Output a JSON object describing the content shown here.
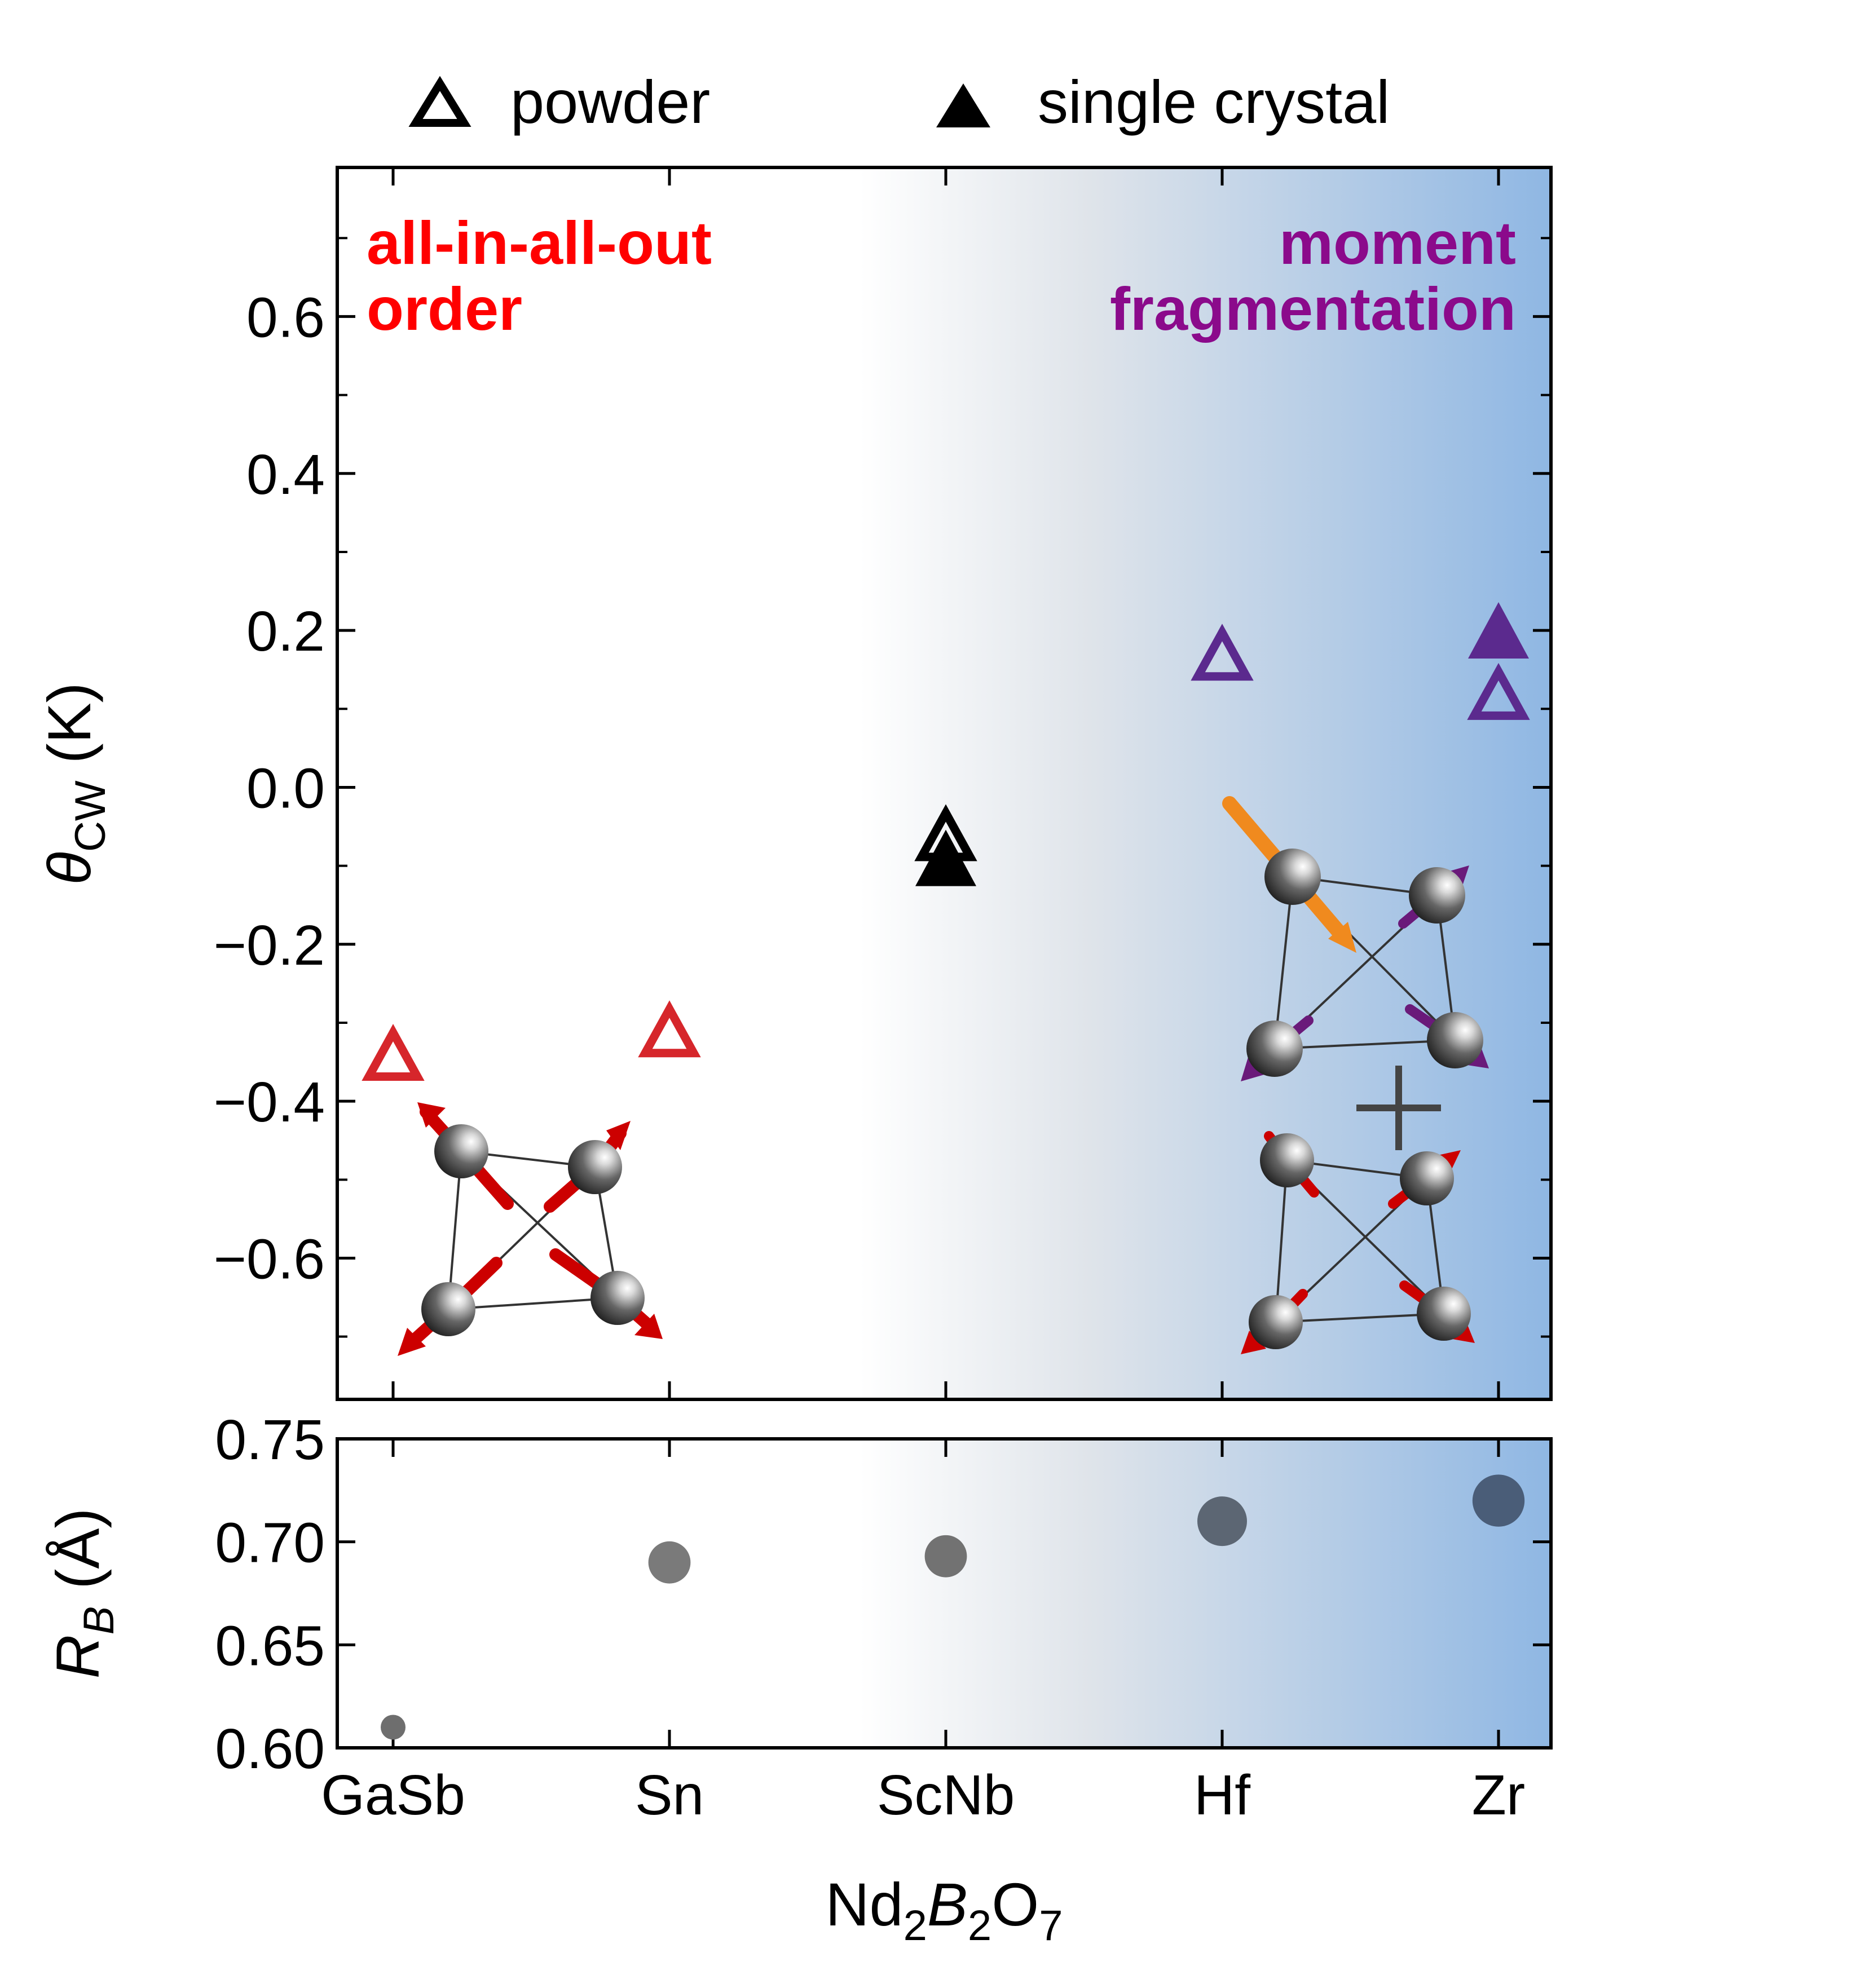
{
  "legend": {
    "powder_label": "powder",
    "single_crystal_label": "single crystal"
  },
  "annotations": {
    "left_region_line1": "all-in-all-out",
    "left_region_line2": "order",
    "right_region_line1": "moment",
    "right_region_line2": "fragmentation"
  },
  "colors": {
    "aiao_red": "#d6262b",
    "aiao_text": "#ff0000",
    "fragmentation_purple": "#5b2a8e",
    "fragmentation_text": "#8b0a8b",
    "black": "#000000",
    "gradient_blue": "#8fb7e3",
    "sphere": "#555555",
    "arrow_red": "#cc0000",
    "arrow_orange": "#f08a1e",
    "arrow_purple": "#6a1a7a"
  },
  "chart_data": [
    {
      "type": "scatter",
      "ylabel_symbol": "θ",
      "ylabel_sub": "CW",
      "ylabel_unit": " (K)",
      "ylim": [
        -0.78,
        0.79
      ],
      "yticks": [
        -0.6,
        -0.4,
        -0.2,
        0.0,
        0.2,
        0.4,
        0.6
      ],
      "ytick_labels": [
        "−0.6",
        "−0.4",
        "−0.2",
        "0.0",
        "0.2",
        "0.4",
        "0.6"
      ],
      "categories": [
        "GaSb",
        "Sn",
        "ScNb",
        "Hf",
        "Zr"
      ],
      "points": [
        {
          "x": "GaSb",
          "y": -0.35,
          "marker": "powder",
          "color": "#d6262b"
        },
        {
          "x": "Sn",
          "y": -0.32,
          "marker": "powder",
          "color": "#d6262b"
        },
        {
          "x": "ScNb",
          "y": -0.1,
          "marker": "single_crystal",
          "color": "#000000"
        },
        {
          "x": "ScNb",
          "y": -0.07,
          "marker": "powder",
          "color": "#000000"
        },
        {
          "x": "Hf",
          "y": 0.16,
          "marker": "powder",
          "color": "#5b2a8e"
        },
        {
          "x": "Zr",
          "y": 0.19,
          "marker": "single_crystal",
          "color": "#5b2a8e"
        },
        {
          "x": "Zr",
          "y": 0.11,
          "marker": "powder",
          "color": "#5b2a8e"
        }
      ]
    },
    {
      "type": "scatter",
      "ylabel_symbol": "R",
      "ylabel_sub": "B",
      "ylabel_unit": " (Å)",
      "ylim": [
        0.6,
        0.75
      ],
      "yticks": [
        0.6,
        0.65,
        0.7,
        0.75
      ],
      "ytick_labels": [
        "0.60",
        "0.65",
        "0.70",
        "0.75"
      ],
      "categories": [
        "GaSb",
        "Sn",
        "ScNb",
        "Hf",
        "Zr"
      ],
      "xlabel_parts": [
        "Nd",
        "2",
        "B",
        "2",
        "O",
        "7"
      ],
      "points": [
        {
          "x": "GaSb",
          "y": 0.61,
          "size": 0.5,
          "color": "#6e6e6e"
        },
        {
          "x": "Sn",
          "y": 0.69,
          "size": 0.85,
          "color": "#7a7a7a"
        },
        {
          "x": "ScNb",
          "y": 0.693,
          "size": 0.85,
          "color": "#727272"
        },
        {
          "x": "Hf",
          "y": 0.71,
          "size": 1.0,
          "color": "#5c6673"
        },
        {
          "x": "Zr",
          "y": 0.72,
          "size": 1.05,
          "color": "#4a5d78"
        }
      ]
    }
  ]
}
